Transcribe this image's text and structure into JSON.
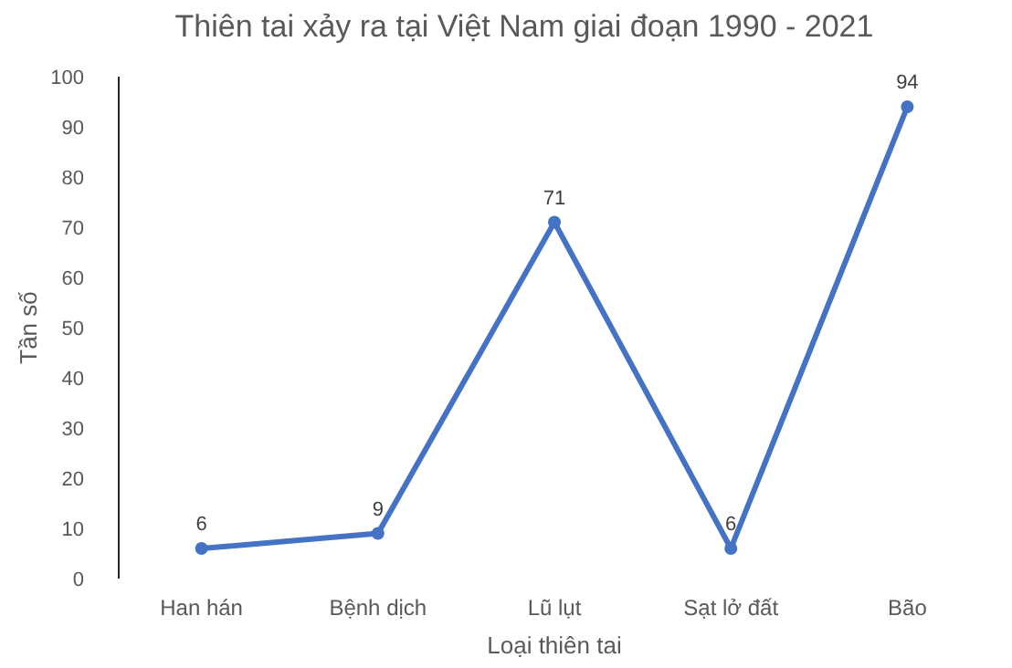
{
  "chart_data": {
    "type": "line",
    "title": "Thiên tai xảy ra tại Việt Nam giai đoạn 1990 - 2021",
    "xlabel": "Loại thiên tai",
    "ylabel": "Tần số",
    "categories": [
      "Han hán",
      "Bệnh dịch",
      "Lũ lụt",
      "Sạt lở đất",
      "Bão"
    ],
    "series": [
      {
        "color": "#4472c4",
        "values": [
          6,
          9,
          71,
          6,
          94
        ]
      }
    ],
    "ylim": [
      0,
      100
    ],
    "yticks": [
      0,
      10,
      20,
      30,
      40,
      50,
      60,
      70,
      80,
      90,
      100
    ],
    "grid": false,
    "marker": "circle",
    "line_style": "solid",
    "data_labels": true
  }
}
